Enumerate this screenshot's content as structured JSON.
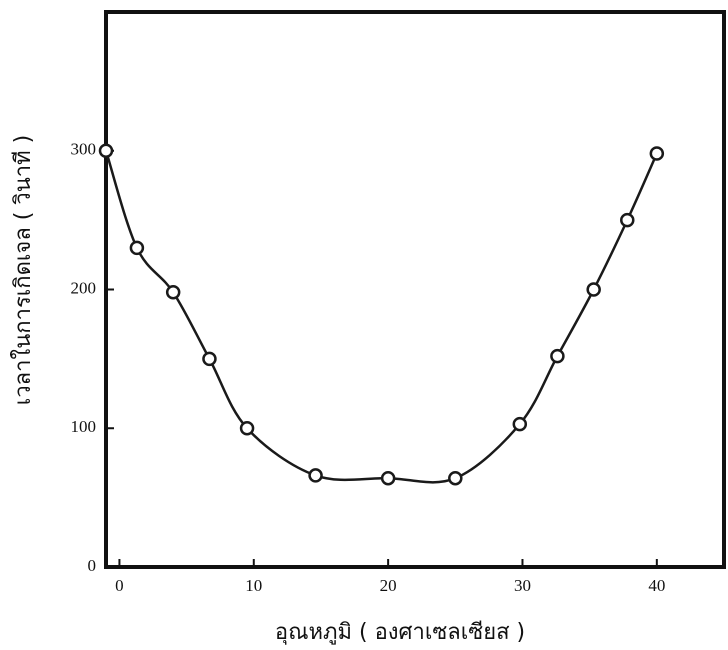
{
  "chart_data": {
    "type": "line",
    "x_label": "อุณหภูมิ ( องศาเซลเซียส )",
    "y_label": "เวลาในการเกิดเจล ( วินาที )",
    "series": [
      {
        "color": "#1a1a1a",
        "x": [
          -1,
          1.3,
          4,
          6.7,
          9.5,
          14.6,
          20,
          25,
          29.8,
          32.6,
          35.3,
          37.8,
          40
        ],
        "values": [
          300,
          230,
          198,
          150,
          100,
          66,
          64,
          64,
          103,
          152,
          200,
          250,
          298
        ]
      }
    ],
    "xlim": [
      -1,
      45
    ],
    "ylim": [
      0,
      400
    ],
    "xticks": [
      0,
      10,
      20,
      30,
      40
    ],
    "yticks": [
      0,
      100,
      200,
      300
    ]
  }
}
